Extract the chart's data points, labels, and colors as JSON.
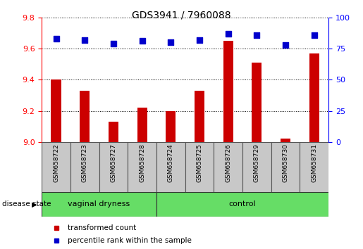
{
  "title": "GDS3941 / 7960088",
  "samples": [
    "GSM658722",
    "GSM658723",
    "GSM658727",
    "GSM658728",
    "GSM658724",
    "GSM658725",
    "GSM658726",
    "GSM658729",
    "GSM658730",
    "GSM658731"
  ],
  "transformed_counts": [
    9.4,
    9.33,
    9.13,
    9.22,
    9.2,
    9.33,
    9.65,
    9.51,
    9.02,
    9.57
  ],
  "percentile_ranks": [
    83,
    82,
    79,
    81,
    80,
    82,
    87,
    86,
    78,
    86
  ],
  "ylim_left": [
    9.0,
    9.8
  ],
  "ylim_right": [
    0,
    100
  ],
  "yticks_left": [
    9.0,
    9.2,
    9.4,
    9.6,
    9.8
  ],
  "yticks_right": [
    0,
    25,
    50,
    75,
    100
  ],
  "group_labels": [
    "vaginal dryness",
    "control"
  ],
  "bar_color": "#CC0000",
  "dot_color": "#0000CC",
  "sample_box_color": "#C8C8C8",
  "green_color": "#66DD66",
  "legend_labels": [
    "transformed count",
    "percentile rank within the sample"
  ],
  "vaginal_dryness_indices": [
    0,
    1,
    2,
    3
  ],
  "control_indices": [
    4,
    5,
    6,
    7,
    8,
    9
  ]
}
